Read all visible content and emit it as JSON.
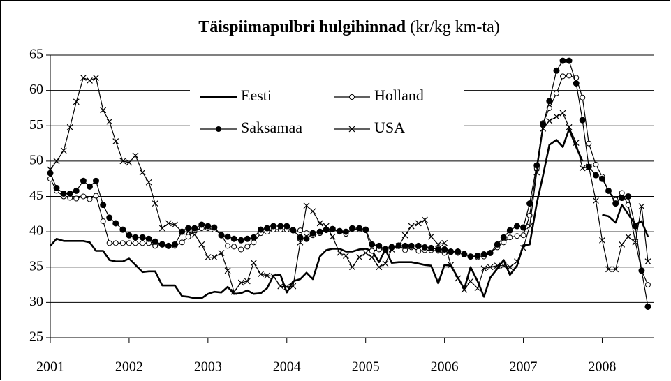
{
  "chart_data": {
    "type": "line",
    "title": "Täispiimapulbri hulgihinnad",
    "subtitle": "(kr/kg km-ta)",
    "x": [
      2001,
      2001.08,
      2001.17,
      2001.25,
      2001.33,
      2001.42,
      2001.5,
      2001.58,
      2001.67,
      2001.75,
      2001.83,
      2001.92,
      2002,
      2002.08,
      2002.17,
      2002.25,
      2002.33,
      2002.42,
      2002.5,
      2002.58,
      2002.67,
      2002.75,
      2002.83,
      2002.92,
      2003,
      2003.08,
      2003.17,
      2003.25,
      2003.33,
      2003.42,
      2003.5,
      2003.58,
      2003.67,
      2003.75,
      2003.83,
      2003.92,
      2004,
      2004.08,
      2004.17,
      2004.25,
      2004.33,
      2004.42,
      2004.5,
      2004.58,
      2004.67,
      2004.75,
      2004.83,
      2004.92,
      2005,
      2005.08,
      2005.17,
      2005.25,
      2005.33,
      2005.42,
      2005.5,
      2005.58,
      2005.67,
      2005.75,
      2005.83,
      2005.92,
      2006,
      2006.08,
      2006.17,
      2006.25,
      2006.33,
      2006.42,
      2006.5,
      2006.58,
      2006.67,
      2006.75,
      2006.83,
      2006.92,
      2007,
      2007.08,
      2007.17,
      2007.25,
      2007.33,
      2007.42,
      2007.5,
      2007.58,
      2007.67,
      2007.75,
      2007.83,
      2007.92,
      2008,
      2008.08,
      2008.17,
      2008.25,
      2008.33,
      2008.42,
      2008.5,
      2008.58
    ],
    "series": [
      {
        "name": "Eesti",
        "color": "#000000",
        "marker": "none",
        "values": [
          38,
          39,
          38.7,
          38.7,
          38.7,
          38.7,
          38.5,
          37.3,
          37.3,
          36,
          35.8,
          35.8,
          36.2,
          35.3,
          34.3,
          34.4,
          34.4,
          32.4,
          32.4,
          32.4,
          30.9,
          30.8,
          30.6,
          30.6,
          31.2,
          31.5,
          31.4,
          32.2,
          31.2,
          31.3,
          31.7,
          31.2,
          31.3,
          32,
          33.8,
          33.9,
          31.4,
          33,
          33.3,
          34.2,
          33.3,
          36.5,
          37.4,
          37.6,
          37.6,
          37.2,
          37.2,
          37.5,
          37.6,
          37.3,
          35.7,
          37.5,
          35.6,
          35.7,
          35.7,
          35.7,
          35.5,
          35.3,
          35.2,
          32.7,
          35.3,
          35.2,
          33.5,
          31.9,
          35,
          33,
          30.8,
          33.5,
          34.8,
          36,
          33.9,
          35.2,
          38.1,
          38.2,
          44,
          48,
          52.3,
          53,
          52,
          54.5,
          52,
          50,
          null,
          null,
          42.4,
          42.2,
          41.3,
          43.8,
          42.5,
          41,
          41.5,
          39.3
        ]
      },
      {
        "name": "Holland",
        "color": "#000000",
        "marker": "circle-open",
        "values": [
          47.5,
          45.8,
          45,
          44.8,
          44.7,
          45,
          44.6,
          45.1,
          41.5,
          38.4,
          38.4,
          38.4,
          38.4,
          38.4,
          38.4,
          38.4,
          38,
          38.3,
          38,
          38,
          38.5,
          39.3,
          40.2,
          40.5,
          40.5,
          40.3,
          39.6,
          38,
          37.9,
          37.5,
          37.9,
          38.5,
          39.8,
          40,
          40.3,
          40.3,
          40.3,
          40.3,
          40.2,
          39.8,
          39.5,
          39.8,
          40.2,
          40.3,
          40,
          39.7,
          40.4,
          40.3,
          40.2,
          37.3,
          37.5,
          37.6,
          37.9,
          38.1,
          37.4,
          37.8,
          37.3,
          37.4,
          37.4,
          37.3,
          37,
          37.1,
          37,
          36.9,
          36.5,
          36.4,
          36.5,
          37,
          37.8,
          38.5,
          39.2,
          39.4,
          39.5,
          42.3,
          49,
          55.4,
          57.5,
          59.6,
          62,
          62.1,
          61.8,
          59,
          52.5,
          49.5,
          47.8,
          45.8,
          44.5,
          45.5,
          43.8,
          38.6,
          34.5,
          32.5
        ]
      },
      {
        "name": "Saksamaa",
        "color": "#000000",
        "marker": "circle",
        "values": [
          48.3,
          46.2,
          45.4,
          45.4,
          45.8,
          47.2,
          46.4,
          47.2,
          43.8,
          42,
          41.2,
          40.3,
          39.5,
          39.2,
          39.2,
          39,
          38.6,
          38.2,
          38,
          38.2,
          40,
          40.5,
          40.5,
          41,
          40.8,
          40.6,
          39.5,
          39.3,
          39,
          38.8,
          39,
          39.2,
          40.3,
          40.5,
          40.8,
          40.8,
          40.8,
          40.2,
          39.2,
          39,
          39.8,
          40,
          40.3,
          40.4,
          40.1,
          40,
          40.5,
          40.5,
          40.3,
          38.2,
          38,
          37.5,
          37.8,
          38,
          38,
          38,
          38,
          37.8,
          37.7,
          37.5,
          37.5,
          37.2,
          37.2,
          36.8,
          36.5,
          36.6,
          36.8,
          37,
          38.2,
          39.2,
          40.2,
          40.8,
          40.6,
          44,
          49.4,
          55.2,
          58.5,
          62.8,
          64.2,
          64.2,
          61,
          55.8,
          49.2,
          48,
          47.5,
          45.8,
          44,
          44.8,
          45,
          40.8,
          34.5,
          29.4
        ]
      },
      {
        "name": "USA",
        "color": "#000000",
        "marker": "x",
        "values": [
          48.8,
          50,
          51.5,
          54.8,
          58.4,
          61.8,
          61.4,
          61.8,
          57.2,
          55.6,
          52.8,
          50,
          49.8,
          50.8,
          48.4,
          47,
          44,
          40.5,
          41.2,
          41,
          40,
          40,
          39.6,
          38.2,
          36.4,
          36.4,
          37,
          34.5,
          31.5,
          32.8,
          33,
          35.6,
          34,
          33.8,
          33.7,
          32.3,
          32.2,
          32.3,
          38.5,
          43.7,
          42.9,
          41.2,
          40.8,
          39.3,
          37,
          36.6,
          35,
          36.4,
          37,
          36.4,
          35,
          35.5,
          37.5,
          38,
          39.5,
          40.8,
          41.2,
          41.7,
          39.3,
          38.2,
          38.4,
          35.3,
          33.4,
          31.8,
          33,
          32,
          34.8,
          35,
          35.2,
          35.2,
          35,
          35.8,
          37.7,
          40.8,
          48.4,
          54.6,
          55.7,
          56.3,
          56.8,
          54.8,
          52.6,
          49,
          49.2,
          44.4,
          38.8,
          34.7,
          34.7,
          38.2,
          39.3,
          38.5,
          43.6,
          35.8
        ]
      }
    ],
    "xlim": [
      2001,
      2008.66
    ],
    "xticks": [
      2001,
      2002,
      2003,
      2004,
      2005,
      2006,
      2007,
      2008
    ],
    "ylim": [
      25,
      65
    ],
    "yticks": [
      25,
      30,
      35,
      40,
      45,
      50,
      55,
      60,
      65
    ],
    "grid": true,
    "legend": "top"
  }
}
